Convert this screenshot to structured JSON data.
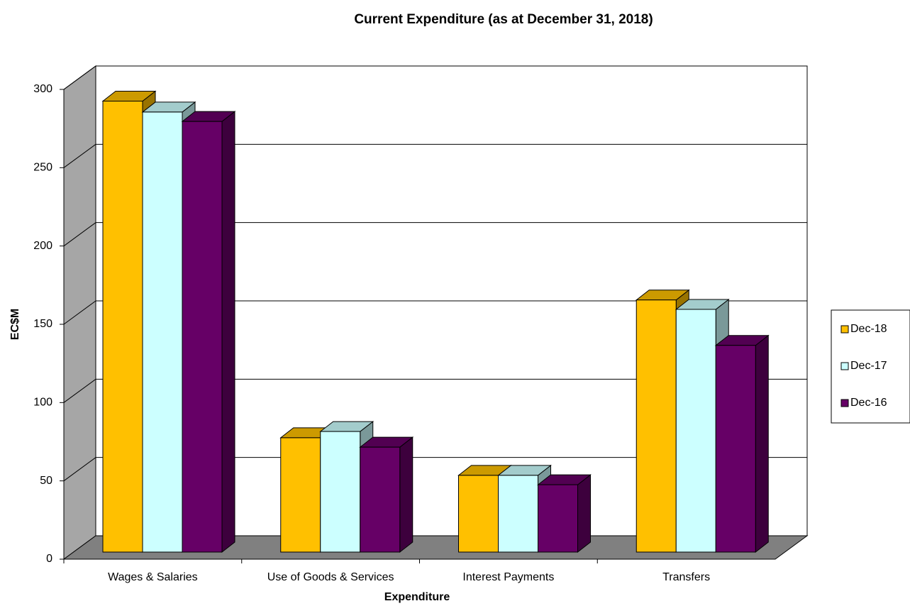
{
  "chart_data": {
    "type": "bar3d",
    "title": "Current Expenditure (as at December 31, 2018)",
    "x_label": "Expenditure",
    "y_label": "EC$M",
    "categories": [
      "Wages & Salaries",
      "Use of Goods & Services",
      "Interest Payments",
      "Transfers"
    ],
    "series": [
      {
        "name": "Dec-18",
        "color": "#FFC000",
        "values": [
          288,
          73,
          49,
          161
        ]
      },
      {
        "name": "Dec-17",
        "color": "#CCFFFF",
        "values": [
          281,
          77,
          49,
          155
        ]
      },
      {
        "name": "Dec-16",
        "color": "#660066",
        "values": [
          275,
          67,
          43,
          132
        ]
      }
    ],
    "ylim": [
      0,
      300
    ],
    "yticks": [
      0,
      50,
      100,
      150,
      200,
      250,
      300
    ],
    "grid": true,
    "legend": "right"
  }
}
